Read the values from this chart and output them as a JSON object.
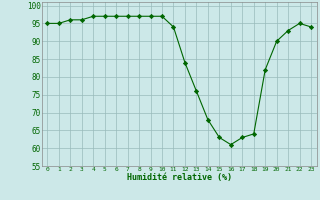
{
  "x": [
    0,
    1,
    2,
    3,
    4,
    5,
    6,
    7,
    8,
    9,
    10,
    11,
    12,
    13,
    14,
    15,
    16,
    17,
    18,
    19,
    20,
    21,
    22,
    23
  ],
  "y": [
    95,
    95,
    96,
    96,
    97,
    97,
    97,
    97,
    97,
    97,
    97,
    94,
    84,
    76,
    68,
    63,
    61,
    63,
    64,
    82,
    90,
    93,
    95,
    94
  ],
  "line_color": "#006600",
  "marker_color": "#006600",
  "bg_color": "#cce8e8",
  "grid_color": "#99bbbb",
  "xlabel": "Humidité relative (%)",
  "xlabel_color": "#006600",
  "tick_label_color": "#006600",
  "ylim": [
    55,
    101
  ],
  "yticks": [
    55,
    60,
    65,
    70,
    75,
    80,
    85,
    90,
    95,
    100
  ],
  "xlim": [
    -0.5,
    23.5
  ],
  "xticks": [
    0,
    1,
    2,
    3,
    4,
    5,
    6,
    7,
    8,
    9,
    10,
    11,
    12,
    13,
    14,
    15,
    16,
    17,
    18,
    19,
    20,
    21,
    22,
    23
  ]
}
